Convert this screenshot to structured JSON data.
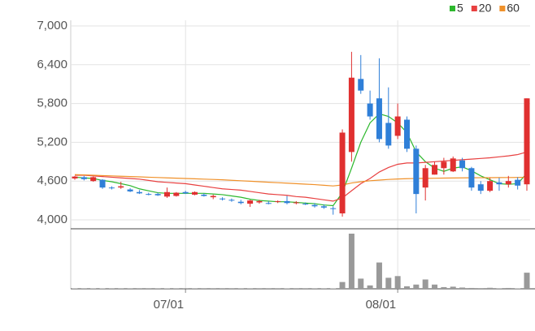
{
  "chart_data": {
    "type": "candlestick",
    "categories": [
      null,
      null,
      null,
      null,
      null,
      null,
      null,
      null,
      null,
      null,
      null,
      null,
      "07/01",
      null,
      null,
      null,
      null,
      null,
      null,
      null,
      null,
      null,
      null,
      null,
      null,
      null,
      null,
      null,
      null,
      null,
      null,
      null,
      null,
      null,
      null,
      "08/01",
      null,
      null,
      null,
      null,
      null,
      null,
      null,
      null,
      null,
      null,
      null,
      null,
      null,
      null
    ],
    "open": [
      4640,
      4660,
      4600,
      4620,
      4500,
      4500,
      4470,
      4430,
      4400,
      4400,
      4360,
      4370,
      4430,
      4390,
      4390,
      4350,
      4330,
      4310,
      4280,
      4250,
      4270,
      4260,
      4280,
      4290,
      4260,
      4250,
      4230,
      4210,
      4180,
      4100,
      5050,
      6180,
      5800,
      5880,
      5500,
      5300,
      5550,
      5100,
      4500,
      4700,
      4800,
      4750,
      4920,
      4800,
      4550,
      4450,
      4580,
      4550,
      4620,
      4550
    ],
    "high": [
      4680,
      4680,
      4670,
      4630,
      4520,
      4590,
      4490,
      4460,
      4420,
      4420,
      4500,
      4430,
      4450,
      4440,
      4410,
      4390,
      4350,
      4330,
      4310,
      4310,
      4310,
      4290,
      4300,
      4370,
      4290,
      4270,
      4260,
      4240,
      4210,
      5400,
      6600,
      6550,
      6000,
      6500,
      6050,
      5800,
      5600,
      5150,
      4850,
      4900,
      4960,
      4980,
      4960,
      4820,
      4600,
      4650,
      4650,
      4680,
      4660,
      5880
    ],
    "low": [
      4620,
      4610,
      4590,
      4480,
      4470,
      4480,
      4430,
      4400,
      4380,
      4370,
      4340,
      4360,
      4400,
      4380,
      4360,
      4320,
      4300,
      4280,
      4240,
      4200,
      4250,
      4240,
      4260,
      4240,
      4240,
      4230,
      4190,
      4170,
      4080,
      4050,
      4900,
      5950,
      5550,
      5200,
      5100,
      5250,
      5050,
      4100,
      4300,
      4700,
      4700,
      4740,
      4750,
      4450,
      4400,
      4430,
      4450,
      4500,
      4470,
      4450
    ],
    "close": [
      4670,
      4630,
      4660,
      4500,
      4490,
      4520,
      4440,
      4410,
      4390,
      4380,
      4430,
      4420,
      4410,
      4430,
      4370,
      4370,
      4320,
      4300,
      4260,
      4300,
      4290,
      4250,
      4290,
      4260,
      4270,
      4240,
      4210,
      4190,
      4170,
      5350,
      6200,
      6000,
      5600,
      5250,
      5150,
      5600,
      5100,
      4400,
      4800,
      4850,
      4900,
      4950,
      4800,
      4500,
      4450,
      4600,
      4550,
      4600,
      4530,
      5880
    ],
    "volume": [
      4,
      3,
      4,
      5,
      3,
      3,
      3,
      2,
      2,
      3,
      4,
      3,
      2,
      3,
      2,
      2,
      2,
      2,
      3,
      3,
      2,
      2,
      2,
      4,
      2,
      2,
      3,
      3,
      5,
      80,
      650,
      120,
      40,
      310,
      130,
      150,
      30,
      50,
      110,
      50,
      20,
      25,
      15,
      10,
      8,
      12,
      6,
      10,
      5,
      190
    ],
    "series": [
      {
        "name": "5",
        "color": "#2db82d",
        "values": [
          4660,
          4650,
          4640,
          4610,
          4590,
          4560,
          4530,
          4480,
          4450,
          4420,
          4410,
          4410,
          4410,
          4410,
          4410,
          4400,
          4390,
          4370,
          4350,
          4320,
          4300,
          4290,
          4280,
          4280,
          4270,
          4260,
          4250,
          4230,
          4220,
          4420,
          4800,
          5200,
          5500,
          5640,
          5600,
          5500,
          5350,
          5050,
          4900,
          4800,
          4750,
          4800,
          4820,
          4760,
          4680,
          4620,
          4560,
          4550,
          4560,
          4720
        ]
      },
      {
        "name": "20",
        "color": "#e84040",
        "values": [
          4690,
          4690,
          4680,
          4670,
          4660,
          4650,
          4640,
          4630,
          4610,
          4590,
          4580,
          4570,
          4560,
          4540,
          4520,
          4500,
          4480,
          4470,
          4460,
          4440,
          4420,
          4400,
          4390,
          4380,
          4360,
          4350,
          4330,
          4310,
          4290,
          4340,
          4450,
          4560,
          4640,
          4740,
          4810,
          4860,
          4880,
          4880,
          4890,
          4900,
          4910,
          4920,
          4930,
          4940,
          4950,
          4960,
          4975,
          4990,
          5010,
          5050
        ]
      },
      {
        "name": "60",
        "color": "#f0912a",
        "values": [
          4700,
          4695,
          4690,
          4685,
          4680,
          4675,
          4670,
          4665,
          4660,
          4655,
          4650,
          4645,
          4640,
          4635,
          4630,
          4625,
          4620,
          4612,
          4605,
          4598,
          4590,
          4582,
          4575,
          4568,
          4560,
          4552,
          4545,
          4535,
          4525,
          4540,
          4570,
          4590,
          4605,
          4615,
          4625,
          4632,
          4637,
          4640,
          4642,
          4644,
          4646,
          4648,
          4650,
          4651,
          4652,
          4653,
          4654,
          4655,
          4656,
          4660
        ]
      }
    ],
    "up_color": "#e03030",
    "down_color": "#2f7fd8",
    "volume_color": "#999999",
    "ylim": [
      4000,
      7000
    ],
    "yticks": [
      {
        "value": 4000,
        "label": "4,000"
      },
      {
        "value": 4600,
        "label": "4,600"
      },
      {
        "value": 5200,
        "label": "5,200"
      },
      {
        "value": 5800,
        "label": "5,800"
      },
      {
        "value": 6400,
        "label": "6,400"
      },
      {
        "value": 7000,
        "label": "7,000"
      }
    ],
    "grid": true
  }
}
